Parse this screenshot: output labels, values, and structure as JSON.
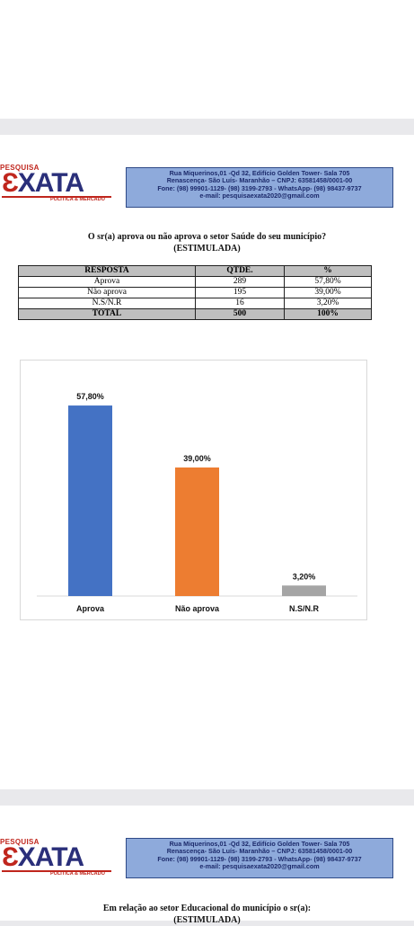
{
  "header": {
    "logo_top": "PESQUISA",
    "logo_main": "XATA",
    "logo_sub": "POLÍTICA & MERCADO",
    "address_lines": [
      "Rua Miquerinos,01 -Qd 32,  Edifício Golden Tower- Sala 705",
      "Renascença- São Luís- Maranhão – CNPJ: 63581458/0001-00",
      "Fone: (98) 99901-1129- (98) 3199-2793 - WhatsApp- (98) 98437-9737",
      "e-mail: pesquisaexata2020@gmail.com"
    ]
  },
  "question1": {
    "text": "O sr(a) aprova ou não aprova o setor Saúde do seu município?",
    "subtitle": "(ESTIMULADA)"
  },
  "table": {
    "headers": [
      "RESPOSTA",
      "QTDE.",
      "%"
    ],
    "rows": [
      [
        "Aprova",
        "289",
        "57,80%"
      ],
      [
        "Não aprova",
        "195",
        "39,00%"
      ],
      [
        "N.S/N.R",
        "16",
        "3,20%"
      ]
    ],
    "total": [
      "TOTAL",
      "500",
      "100%"
    ]
  },
  "chart_data": {
    "type": "bar",
    "categories": [
      "Aprova",
      "Não aprova",
      "N.S/N.R"
    ],
    "values": [
      57.8,
      39.0,
      3.2
    ],
    "labels": [
      "57,80%",
      "39,00%",
      "3,20%"
    ],
    "colors": [
      "#4472c4",
      "#ed7d31",
      "#a5a5a5"
    ],
    "ylim": [
      0,
      60
    ],
    "grid": false,
    "legend": "none"
  },
  "question2": {
    "text": "Em relação ao setor Educacional do município o sr(a):",
    "subtitle": "(ESTIMULADA)"
  }
}
